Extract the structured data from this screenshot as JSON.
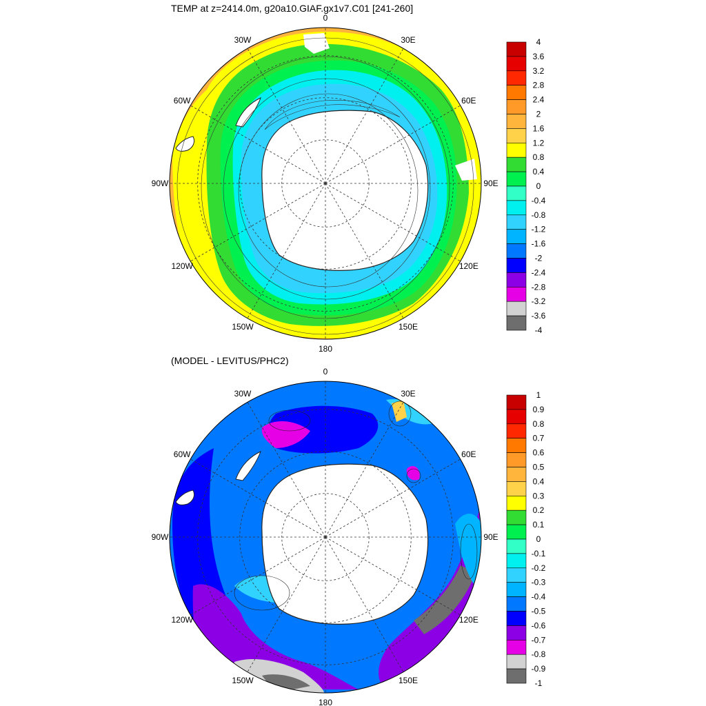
{
  "panels": [
    {
      "title": "TEMP at z=2414.0m, g20a10.GIAF.gx1v7.C01 [241-260]",
      "lon_labels": [
        "0",
        "30E",
        "60E",
        "90E",
        "120E",
        "150E",
        "180",
        "150W",
        "120W",
        "90W",
        "60W",
        "30W"
      ],
      "colorbar_labels": [
        "4",
        "3.6",
        "3.2",
        "2.8",
        "2.4",
        "2",
        "1.6",
        "1.2",
        "0.8",
        "0.4",
        "0",
        "-0.4",
        "-0.8",
        "-1.2",
        "-1.6",
        "-2",
        "-2.4",
        "-2.8",
        "-3.2",
        "-3.6",
        "-4"
      ],
      "colorbar_colors": [
        "#c80000",
        "#e60000",
        "#ff2800",
        "#ff7800",
        "#ff9a28",
        "#ffb43c",
        "#ffd24a",
        "#ffff00",
        "#32dc32",
        "#00f050",
        "#32ffc8",
        "#00f0f0",
        "#32d2ff",
        "#00b4ff",
        "#0078ff",
        "#0000ff",
        "#8c00e6",
        "#e600e6",
        "#d2d2d2",
        "#6e6e6e"
      ]
    },
    {
      "title": "(MODEL - LEVITUS/PHC2)",
      "lon_labels": [
        "0",
        "30E",
        "60E",
        "90E",
        "120E",
        "150E",
        "180",
        "150W",
        "120W",
        "90W",
        "60W",
        "30W"
      ],
      "colorbar_labels": [
        "1",
        "0.9",
        "0.8",
        "0.7",
        "0.6",
        "0.5",
        "0.4",
        "0.3",
        "0.2",
        "0.1",
        "0",
        "-0.1",
        "-0.2",
        "-0.3",
        "-0.4",
        "-0.5",
        "-0.6",
        "-0.7",
        "-0.8",
        "-0.9",
        "-1"
      ],
      "colorbar_colors": [
        "#c80000",
        "#e60000",
        "#ff2800",
        "#ff7800",
        "#ff9a28",
        "#ffb43c",
        "#ffd24a",
        "#ffff00",
        "#32dc32",
        "#00f050",
        "#32ffc8",
        "#00f0f0",
        "#32d2ff",
        "#00b4ff",
        "#0078ff",
        "#0000ff",
        "#8c00e6",
        "#e600e6",
        "#d2d2d2",
        "#6e6e6e"
      ]
    }
  ]
}
